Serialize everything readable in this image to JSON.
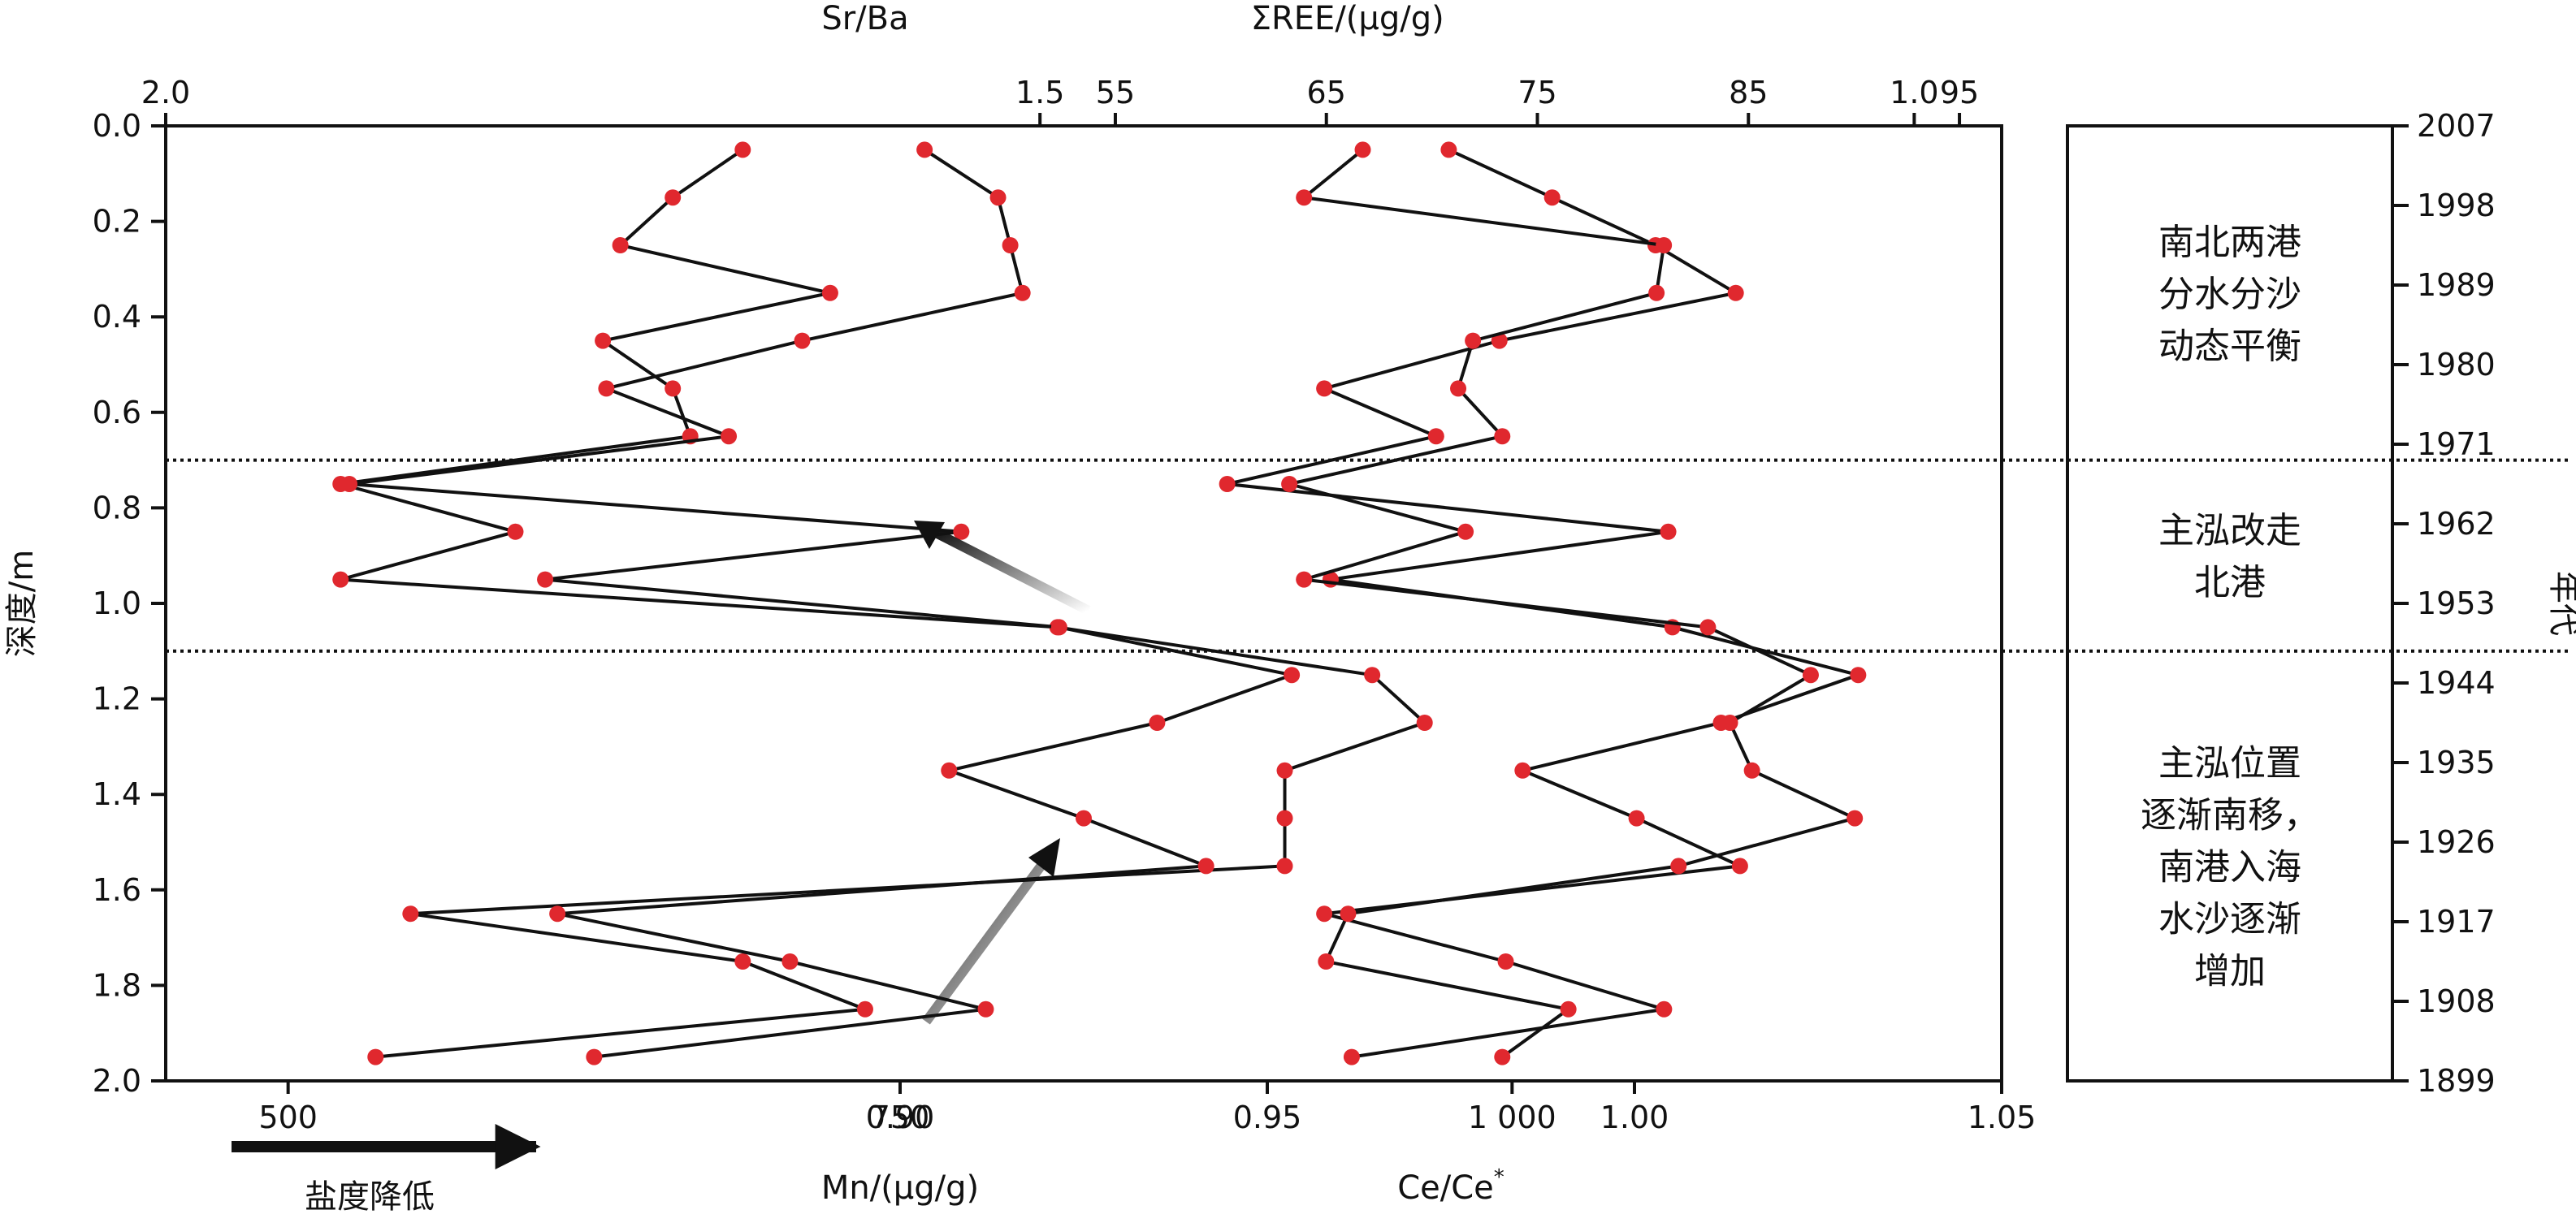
{
  "chart_data": {
    "type": "line",
    "title": "",
    "y_axis": {
      "label": "深度/m",
      "lim": [
        0.0,
        2.0
      ],
      "ticks": [
        "0.0",
        "0.2",
        "0.4",
        "0.6",
        "0.8",
        "1.0",
        "1.2",
        "1.4",
        "1.6",
        "1.8",
        "2.0"
      ]
    },
    "right_axis": {
      "label": "年代",
      "ticks": [
        "2007",
        "1998",
        "1989",
        "1980",
        "1971",
        "1962",
        "1953",
        "1944",
        "1935",
        "1926",
        "1917",
        "1908",
        "1899"
      ]
    },
    "depths": [
      0.05,
      0.15,
      0.25,
      0.35,
      0.45,
      0.55,
      0.65,
      0.75,
      0.85,
      0.95,
      1.05,
      1.15,
      1.25,
      1.35,
      1.45,
      1.55,
      1.65,
      1.75,
      1.85,
      1.95
    ],
    "series": [
      {
        "name": "Sr/Ba",
        "axis_position": "top",
        "axis_label": "Sr/Ba",
        "axis_ticks": [
          "2.0",
          "1.5",
          "1.0"
        ],
        "xlim": [
          2.0,
          0.95
        ],
        "values": [
          1.67,
          1.71,
          1.74,
          1.62,
          1.75,
          1.71,
          1.7,
          1.9,
          1.8,
          1.9,
          1.49,
          1.31,
          1.28,
          1.36,
          1.36,
          1.36,
          1.86,
          1.67,
          1.6,
          1.88
        ]
      },
      {
        "name": "Mn/(μg/g)",
        "axis_position": "bottom",
        "axis_label": "Mn/(μg/g)",
        "axis_ticks": [
          "500",
          "750",
          "1 000"
        ],
        "xlim": [
          450,
          1200
        ],
        "values": [
          760,
          790,
          795,
          800,
          710,
          630,
          680,
          525,
          775,
          605,
          815,
          910,
          855,
          770,
          825,
          875,
          610,
          705,
          785,
          625
        ]
      },
      {
        "name": "ΣREE/(μg/g)",
        "axis_position": "top",
        "axis_label": "ΣREE/(μg/g)",
        "axis_ticks": [
          "55",
          "65",
          "75",
          "85",
          "95"
        ],
        "xlim": [
          10,
          97
        ],
        "values": [
          70.8,
          75.7,
          80.6,
          84.4,
          73.2,
          64.9,
          70.2,
          60.3,
          81.2,
          65.2,
          81.4,
          90.2,
          83.7,
          74.3,
          79.7,
          84.6,
          64.9,
          73.5,
          81.0,
          66.2
        ]
      },
      {
        "name": "Ce/Ce*",
        "axis_position": "bottom",
        "axis_label": "Ce/Ce*",
        "axis_ticks": [
          "0.90",
          "0.95",
          "1.00",
          "1.05"
        ],
        "xlim": [
          0.8,
          1.05
        ],
        "values": [
          0.963,
          0.955,
          1.004,
          1.003,
          0.978,
          0.976,
          0.982,
          0.953,
          0.977,
          0.955,
          1.01,
          1.024,
          1.013,
          1.016,
          1.03,
          1.006,
          0.961,
          0.958,
          0.991,
          0.982
        ]
      }
    ],
    "boundaries": [
      0.7,
      1.1
    ],
    "zones": [
      {
        "depth_range": [
          0.0,
          0.7
        ],
        "lines": [
          "南北两港",
          "分水分沙",
          "动态平衡"
        ]
      },
      {
        "depth_range": [
          0.7,
          1.1
        ],
        "lines": [
          "主泓改走",
          "北港"
        ]
      },
      {
        "depth_range": [
          1.1,
          2.0
        ],
        "lines": [
          "主泓位置",
          "逐渐南移，",
          "南港入海",
          "水沙逐渐",
          "增加"
        ]
      }
    ],
    "annotations": {
      "salinity_label": "盐度降低"
    },
    "colors": {
      "marker": "#e0282e",
      "line": "#111111",
      "frame": "#111111"
    }
  }
}
